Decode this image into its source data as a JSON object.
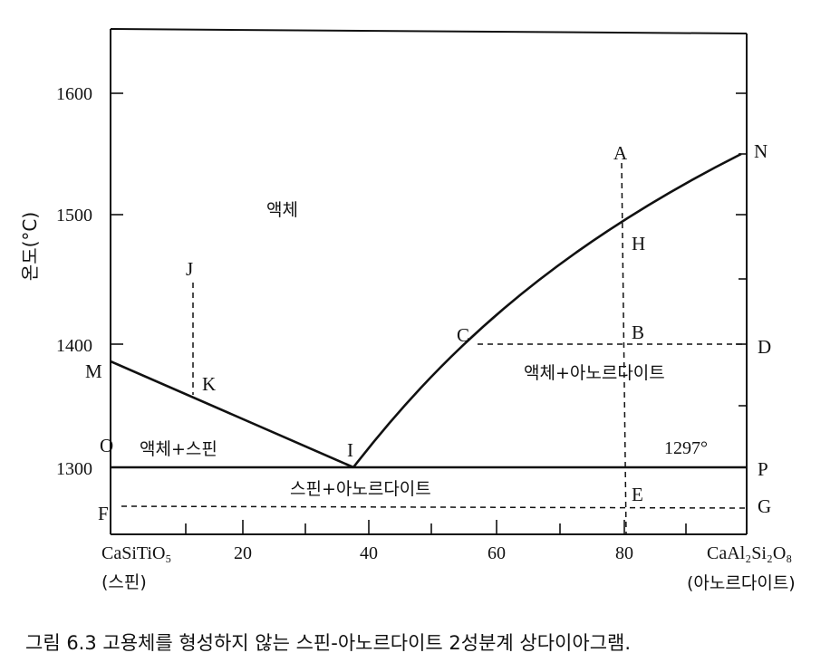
{
  "y_axis": {
    "label": "온도(°C)",
    "ticks": [
      "1600",
      "1500",
      "1400",
      "1300"
    ]
  },
  "x_axis": {
    "ticks": [
      "CaSiTiO₅",
      "20",
      "40",
      "60",
      "80",
      "CaAl₂Si₂O₈"
    ],
    "left_end_name": "(스핀)",
    "right_end_name": "(아노르다이트)"
  },
  "regions": {
    "liquid": "액체",
    "liquid_anorthite": "액체+아노르다이트",
    "liquid_sphene": "액체+스핀",
    "sphene_anorthite": "스핀+아노르다이트"
  },
  "eutectic_temp_label": "1297°",
  "points": {
    "A": "A",
    "N": "N",
    "H": "H",
    "J": "J",
    "C": "C",
    "B": "B",
    "D": "D",
    "M": "M",
    "K": "K",
    "O": "O",
    "I": "I",
    "P": "P",
    "E": "E",
    "F": "F",
    "G": "G"
  },
  "caption": "그림 6.3  고용체를 형성하지 않는 스핀-아노르다이트 2성분계 상다이아그램."
}
